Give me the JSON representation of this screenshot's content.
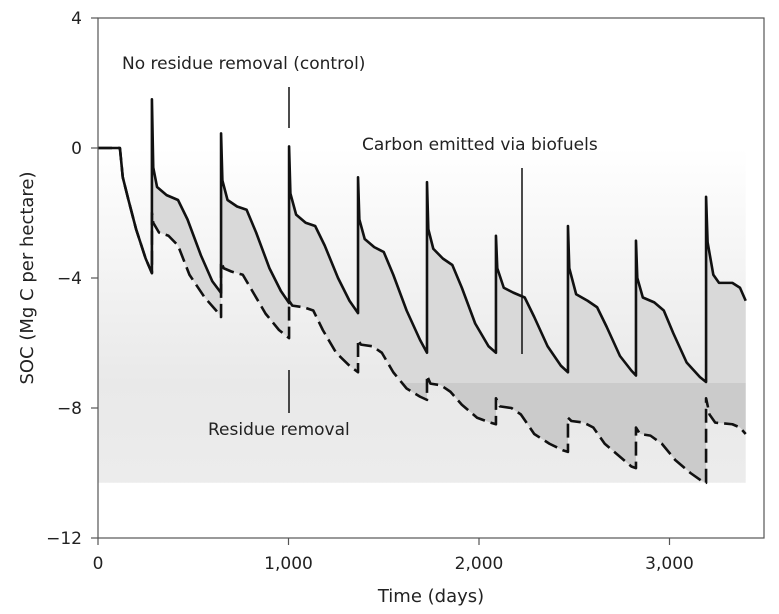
{
  "chart_data": {
    "type": "line",
    "title": "",
    "xlabel": "Time (days)",
    "ylabel": "SOC (Mg C per hectare)",
    "xlim": [
      0,
      3500
    ],
    "ylim": [
      -12,
      4
    ],
    "x_ticks": [
      0,
      1000,
      2000,
      3000
    ],
    "x_tick_labels": [
      "0",
      "1,000",
      "2,000",
      "3,000"
    ],
    "y_ticks": [
      4,
      0,
      -4,
      -8,
      -12
    ],
    "y_tick_labels": [
      "4",
      "0",
      "−4",
      "−8",
      "−12"
    ],
    "grid": false,
    "annotations": {
      "control": "No residue removal (control)",
      "removal": "Residue removal",
      "emitted": "Carbon emitted via biofuels"
    },
    "colors": {
      "line": "#111111",
      "between_upper": "#d9d9d9",
      "between_lower": "#cbcbcb",
      "background": "#ebebeb"
    },
    "series": [
      {
        "label_ref": "control",
        "style": "solid",
        "points": [
          [
            0,
            0
          ],
          [
            115,
            0
          ],
          [
            130,
            -0.9
          ],
          [
            160,
            -1.6
          ],
          [
            200,
            -2.5
          ],
          [
            250,
            -3.4
          ],
          [
            283,
            -3.85
          ],
          [
            283,
            1.5
          ],
          [
            290,
            -0.6
          ],
          [
            310,
            -1.2
          ],
          [
            360,
            -1.45
          ],
          [
            420,
            -1.6
          ],
          [
            470,
            -2.2
          ],
          [
            540,
            -3.3
          ],
          [
            600,
            -4.1
          ],
          [
            646,
            -4.46
          ],
          [
            646,
            0.45
          ],
          [
            653,
            -1.0
          ],
          [
            680,
            -1.6
          ],
          [
            730,
            -1.8
          ],
          [
            780,
            -1.9
          ],
          [
            830,
            -2.6
          ],
          [
            900,
            -3.7
          ],
          [
            960,
            -4.4
          ],
          [
            1003,
            -4.77
          ],
          [
            1003,
            0.05
          ],
          [
            1010,
            -1.4
          ],
          [
            1040,
            -2.05
          ],
          [
            1090,
            -2.3
          ],
          [
            1140,
            -2.4
          ],
          [
            1190,
            -3.0
          ],
          [
            1260,
            -4.0
          ],
          [
            1320,
            -4.7
          ],
          [
            1365,
            -5.08
          ],
          [
            1365,
            -0.9
          ],
          [
            1372,
            -2.2
          ],
          [
            1400,
            -2.8
          ],
          [
            1450,
            -3.05
          ],
          [
            1500,
            -3.2
          ],
          [
            1550,
            -3.9
          ],
          [
            1620,
            -5.0
          ],
          [
            1690,
            -5.9
          ],
          [
            1727,
            -6.3
          ],
          [
            1727,
            -1.05
          ],
          [
            1734,
            -2.5
          ],
          [
            1760,
            -3.1
          ],
          [
            1810,
            -3.4
          ],
          [
            1860,
            -3.6
          ],
          [
            1910,
            -4.3
          ],
          [
            1980,
            -5.4
          ],
          [
            2050,
            -6.1
          ],
          [
            2089,
            -6.3
          ],
          [
            2089,
            -2.7
          ],
          [
            2096,
            -3.7
          ],
          [
            2130,
            -4.3
          ],
          [
            2180,
            -4.45
          ],
          [
            2240,
            -4.6
          ],
          [
            2290,
            -5.2
          ],
          [
            2360,
            -6.1
          ],
          [
            2430,
            -6.7
          ],
          [
            2467,
            -6.9
          ],
          [
            2467,
            -2.4
          ],
          [
            2474,
            -3.7
          ],
          [
            2510,
            -4.5
          ],
          [
            2570,
            -4.7
          ],
          [
            2620,
            -4.9
          ],
          [
            2670,
            -5.5
          ],
          [
            2740,
            -6.4
          ],
          [
            2800,
            -6.85
          ],
          [
            2824,
            -7.0
          ],
          [
            2824,
            -2.85
          ],
          [
            2831,
            -4.0
          ],
          [
            2860,
            -4.6
          ],
          [
            2920,
            -4.75
          ],
          [
            2970,
            -5.0
          ],
          [
            3020,
            -5.7
          ],
          [
            3090,
            -6.6
          ],
          [
            3160,
            -7.05
          ],
          [
            3192,
            -7.2
          ],
          [
            3192,
            -1.5
          ],
          [
            3200,
            -2.9
          ],
          [
            3230,
            -3.9
          ],
          [
            3260,
            -4.15
          ],
          [
            3330,
            -4.15
          ],
          [
            3370,
            -4.3
          ],
          [
            3400,
            -4.7
          ]
        ]
      },
      {
        "label_ref": "removal",
        "style": "dashed",
        "points": [
          [
            0,
            0
          ],
          [
            115,
            0
          ],
          [
            130,
            -0.9
          ],
          [
            160,
            -1.6
          ],
          [
            200,
            -2.5
          ],
          [
            250,
            -3.4
          ],
          [
            283,
            -3.85
          ],
          [
            283,
            -2.0
          ],
          [
            290,
            -2.3
          ],
          [
            320,
            -2.6
          ],
          [
            370,
            -2.7
          ],
          [
            420,
            -3.0
          ],
          [
            480,
            -3.9
          ],
          [
            560,
            -4.6
          ],
          [
            620,
            -5.0
          ],
          [
            646,
            -5.2
          ],
          [
            646,
            -3.5
          ],
          [
            660,
            -3.7
          ],
          [
            700,
            -3.8
          ],
          [
            760,
            -3.9
          ],
          [
            810,
            -4.4
          ],
          [
            880,
            -5.1
          ],
          [
            950,
            -5.6
          ],
          [
            1003,
            -5.85
          ],
          [
            1003,
            -4.7
          ],
          [
            1020,
            -4.85
          ],
          [
            1080,
            -4.9
          ],
          [
            1130,
            -5.0
          ],
          [
            1180,
            -5.6
          ],
          [
            1250,
            -6.3
          ],
          [
            1320,
            -6.7
          ],
          [
            1365,
            -6.9
          ],
          [
            1365,
            -5.9
          ],
          [
            1380,
            -6.05
          ],
          [
            1440,
            -6.1
          ],
          [
            1490,
            -6.3
          ],
          [
            1550,
            -6.9
          ],
          [
            1620,
            -7.4
          ],
          [
            1690,
            -7.65
          ],
          [
            1727,
            -7.75
          ],
          [
            1727,
            -7.0
          ],
          [
            1745,
            -7.25
          ],
          [
            1800,
            -7.3
          ],
          [
            1850,
            -7.5
          ],
          [
            1910,
            -7.9
          ],
          [
            1990,
            -8.3
          ],
          [
            2060,
            -8.45
          ],
          [
            2089,
            -8.5
          ],
          [
            2089,
            -7.7
          ],
          [
            2110,
            -7.95
          ],
          [
            2170,
            -8.0
          ],
          [
            2220,
            -8.2
          ],
          [
            2290,
            -8.8
          ],
          [
            2370,
            -9.1
          ],
          [
            2440,
            -9.3
          ],
          [
            2467,
            -9.35
          ],
          [
            2467,
            -8.3
          ],
          [
            2485,
            -8.4
          ],
          [
            2550,
            -8.45
          ],
          [
            2600,
            -8.6
          ],
          [
            2660,
            -9.1
          ],
          [
            2740,
            -9.5
          ],
          [
            2800,
            -9.8
          ],
          [
            2824,
            -9.85
          ],
          [
            2824,
            -8.6
          ],
          [
            2845,
            -8.8
          ],
          [
            2900,
            -8.85
          ],
          [
            2960,
            -9.1
          ],
          [
            3030,
            -9.6
          ],
          [
            3110,
            -10.0
          ],
          [
            3170,
            -10.25
          ],
          [
            3192,
            -10.3
          ],
          [
            3192,
            -7.7
          ],
          [
            3210,
            -8.2
          ],
          [
            3240,
            -8.45
          ],
          [
            3330,
            -8.5
          ],
          [
            3370,
            -8.6
          ],
          [
            3400,
            -8.8
          ]
        ]
      }
    ]
  }
}
